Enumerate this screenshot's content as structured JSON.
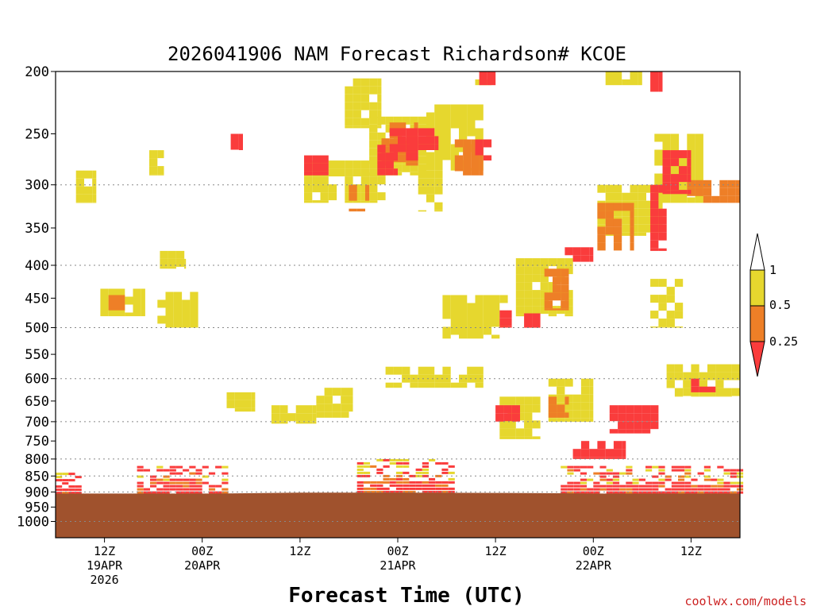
{
  "chart_data": {
    "type": "heatmap",
    "title": "2026041906 NAM Forecast Richardson# KCOE",
    "xlabel": "Forecast Time (UTC)",
    "ylabel": "",
    "credit": "coolwx.com/models",
    "y_axis": {
      "scale": "log-pressure",
      "range_hpa": [
        1060,
        200
      ],
      "ticks": [
        "200",
        "250",
        "300",
        "350",
        "400",
        "450",
        "500",
        "550",
        "600",
        "650",
        "700",
        "750",
        "800",
        "850",
        "900",
        "950",
        "1000"
      ],
      "gridlines_hpa": [
        300,
        400,
        500,
        600,
        700,
        800,
        850,
        900,
        1000
      ]
    },
    "x_axis": {
      "range_hours": [
        0,
        84
      ],
      "ticks": [
        {
          "hour": 6,
          "line1": "12Z",
          "line2": "19APR",
          "line3": "2026"
        },
        {
          "hour": 18,
          "line1": "00Z",
          "line2": "20APR",
          "line3": ""
        },
        {
          "hour": 30,
          "line1": "12Z",
          "line2": "",
          "line3": ""
        },
        {
          "hour": 42,
          "line1": "00Z",
          "line2": "21APR",
          "line3": ""
        },
        {
          "hour": 54,
          "line1": "12Z",
          "line2": "",
          "line3": ""
        },
        {
          "hour": 66,
          "line1": "00Z",
          "line2": "22APR",
          "line3": ""
        },
        {
          "hour": 78,
          "line1": "12Z",
          "line2": "",
          "line3": ""
        }
      ]
    },
    "legend": {
      "labels": [
        "1",
        "0.5",
        "0.25"
      ],
      "bins": [
        {
          "range": "> 1",
          "color": "#ffffff"
        },
        {
          "range": "0.5 - 1",
          "color": "#e6d72e"
        },
        {
          "range": "0.25 - 0.5",
          "color": "#ee7f27"
        },
        {
          "range": "< 0.25",
          "color": "#fa3c3c"
        }
      ]
    },
    "ground_color": "#a0522d",
    "ground_top_hpa_by_hour": [
      [
        0,
        905
      ],
      [
        20,
        905
      ],
      [
        30,
        902
      ],
      [
        42,
        902
      ],
      [
        54,
        903
      ],
      [
        62,
        904
      ],
      [
        66,
        905
      ],
      [
        84,
        905
      ]
    ],
    "regions": [
      {
        "value_bin": "0.5 - 1",
        "x": [
          2.5,
          5.0
        ],
        "p": [
          285,
          320
        ]
      },
      {
        "value_bin": "0.5 - 1",
        "x": [
          11.5,
          13.3
        ],
        "p": [
          265,
          290
        ]
      },
      {
        "value_bin": "0.5 - 1",
        "x": [
          12.8,
          16.0
        ],
        "p": [
          380,
          405
        ]
      },
      {
        "value_bin": "0.5 - 1",
        "x": [
          5.5,
          11.0
        ],
        "p": [
          435,
          480
        ]
      },
      {
        "value_bin": "0.5 - 1",
        "x": [
          12.5,
          17.5
        ],
        "p": [
          440,
          500
        ]
      },
      {
        "value_bin": "0.5 - 1",
        "x": [
          21.0,
          24.5
        ],
        "p": [
          630,
          675
        ]
      },
      {
        "value_bin": "0.5 - 1",
        "x": [
          26.5,
          32.0
        ],
        "p": [
          660,
          705
        ]
      },
      {
        "value_bin": "0.5 - 1",
        "x": [
          32.0,
          36.5
        ],
        "p": [
          620,
          690
        ]
      },
      {
        "value_bin": "0.5 - 1",
        "x": [
          30.5,
          40.5
        ],
        "p": [
          275,
          320
        ]
      },
      {
        "value_bin": "0.5 - 1",
        "x": [
          35.5,
          40.0
        ],
        "p": [
          205,
          245
        ]
      },
      {
        "value_bin": "0.5 - 1",
        "x": [
          38.5,
          45.5
        ],
        "p": [
          235,
          290
        ]
      },
      {
        "value_bin": "0.5 - 1",
        "x": [
          45.5,
          52.5
        ],
        "p": [
          225,
          285
        ]
      },
      {
        "value_bin": "0.5 - 1",
        "x": [
          44.5,
          47.5
        ],
        "p": [
          285,
          330
        ]
      },
      {
        "value_bin": "0.5 - 1",
        "x": [
          51.5,
          53.5
        ],
        "p": [
          200,
          210
        ]
      },
      {
        "value_bin": "0.5 - 1",
        "x": [
          40.5,
          52.5
        ],
        "p": [
          575,
          620
        ]
      },
      {
        "value_bin": "0.5 - 1",
        "x": [
          47.5,
          55.5
        ],
        "p": [
          445,
          520
        ]
      },
      {
        "value_bin": "0.5 - 1",
        "x": [
          56.5,
          63.5
        ],
        "p": [
          390,
          480
        ]
      },
      {
        "value_bin": "0.5 - 1",
        "x": [
          54.5,
          59.5
        ],
        "p": [
          640,
          745
        ]
      },
      {
        "value_bin": "0.5 - 1",
        "x": [
          60.5,
          66.0
        ],
        "p": [
          600,
          700
        ]
      },
      {
        "value_bin": "0.5 - 1",
        "x": [
          66.5,
          74.5
        ],
        "p": [
          300,
          360
        ]
      },
      {
        "value_bin": "0.5 - 1",
        "x": [
          67.5,
          72.0
        ],
        "p": [
          200,
          210
        ]
      },
      {
        "value_bin": "0.5 - 1",
        "x": [
          73.5,
          79.5
        ],
        "p": [
          250,
          320
        ]
      },
      {
        "value_bin": "0.5 - 1",
        "x": [
          75.0,
          84.0
        ],
        "p": [
          570,
          640
        ]
      },
      {
        "value_bin": "0.5 - 1",
        "x": [
          73.0,
          77.0
        ],
        "p": [
          420,
          500
        ]
      },
      {
        "value_bin": "0.25 - 0.5",
        "x": [
          6.5,
          8.5
        ],
        "p": [
          445,
          470
        ]
      },
      {
        "value_bin": "0.25 - 0.5",
        "x": [
          36.0,
          38.5
        ],
        "p": [
          300,
          330
        ]
      },
      {
        "value_bin": "0.25 - 0.5",
        "x": [
          40.0,
          44.5
        ],
        "p": [
          240,
          280
        ]
      },
      {
        "value_bin": "0.25 - 0.5",
        "x": [
          49.0,
          52.5
        ],
        "p": [
          255,
          290
        ]
      },
      {
        "value_bin": "0.25 - 0.5",
        "x": [
          60.0,
          63.0
        ],
        "p": [
          405,
          470
        ]
      },
      {
        "value_bin": "0.25 - 0.5",
        "x": [
          66.5,
          71.0
        ],
        "p": [
          320,
          380
        ]
      },
      {
        "value_bin": "0.25 - 0.5",
        "x": [
          77.5,
          84.0
        ],
        "p": [
          295,
          320
        ]
      },
      {
        "value_bin": "0.25 - 0.5",
        "x": [
          60.5,
          63.0
        ],
        "p": [
          640,
          690
        ]
      },
      {
        "value_bin": "< 0.25",
        "x": [
          21.5,
          23.0
        ],
        "p": [
          250,
          265
        ]
      },
      {
        "value_bin": "< 0.25",
        "x": [
          30.5,
          33.5
        ],
        "p": [
          270,
          290
        ]
      },
      {
        "value_bin": "< 0.25",
        "x": [
          39.5,
          42.0
        ],
        "p": [
          260,
          290
        ]
      },
      {
        "value_bin": "< 0.25",
        "x": [
          41.0,
          44.5
        ],
        "p": [
          245,
          275
        ]
      },
      {
        "value_bin": "< 0.25",
        "x": [
          43.5,
          47.0
        ],
        "p": [
          245,
          265
        ]
      },
      {
        "value_bin": "< 0.25",
        "x": [
          51.5,
          53.5
        ],
        "p": [
          255,
          275
        ]
      },
      {
        "value_bin": "< 0.25",
        "x": [
          52.0,
          54.0
        ],
        "p": [
          200,
          210
        ]
      },
      {
        "value_bin": "< 0.25",
        "x": [
          54.5,
          56.0
        ],
        "p": [
          470,
          500
        ]
      },
      {
        "value_bin": "< 0.25",
        "x": [
          57.5,
          59.5
        ],
        "p": [
          475,
          500
        ]
      },
      {
        "value_bin": "< 0.25",
        "x": [
          62.5,
          66.0
        ],
        "p": [
          375,
          395
        ]
      },
      {
        "value_bin": "< 0.25",
        "x": [
          73.0,
          74.5
        ],
        "p": [
          200,
          215
        ]
      },
      {
        "value_bin": "< 0.25",
        "x": [
          74.5,
          78.0
        ],
        "p": [
          265,
          310
        ]
      },
      {
        "value_bin": "< 0.25",
        "x": [
          73.0,
          75.0
        ],
        "p": [
          300,
          380
        ]
      },
      {
        "value_bin": "< 0.25",
        "x": [
          78.0,
          81.5
        ],
        "p": [
          600,
          630
        ]
      },
      {
        "value_bin": "< 0.25",
        "x": [
          54.0,
          57.0
        ],
        "p": [
          660,
          700
        ]
      },
      {
        "value_bin": "< 0.25",
        "x": [
          68.0,
          74.0
        ],
        "p": [
          660,
          730
        ]
      },
      {
        "value_bin": "< 0.25",
        "x": [
          63.5,
          70.0
        ],
        "p": [
          750,
          800
        ]
      }
    ],
    "boundary_layer": [
      {
        "x": [
          0,
          2.5
        ],
        "p": [
          840,
          900
        ]
      },
      {
        "x": [
          10.0,
          20.5
        ],
        "p": [
          820,
          900
        ]
      },
      {
        "x": [
          37.0,
          49.0
        ],
        "p": [
          800,
          902
        ]
      },
      {
        "x": [
          62.0,
          84.0
        ],
        "p": [
          820,
          905
        ]
      }
    ]
  }
}
